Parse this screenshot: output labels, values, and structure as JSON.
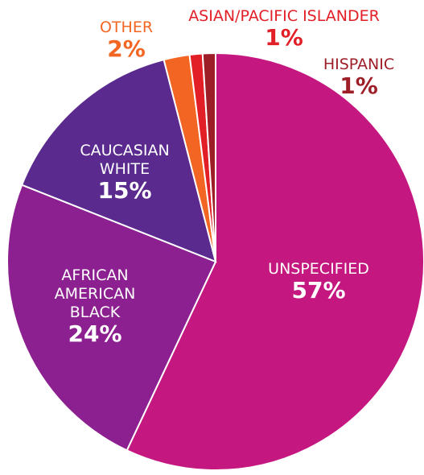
{
  "chart_data": {
    "type": "pie",
    "title": "",
    "start_angle_deg": 0,
    "direction": "clockwise",
    "slices": [
      {
        "label_lines": [
          "UNSPECIFIED"
        ],
        "value": 57,
        "percent_text": "57%",
        "color": "#c4177f",
        "label_color": "#ffffff"
      },
      {
        "label_lines": [
          "AFRICAN",
          "AMERICAN",
          "BLACK"
        ],
        "value": 24,
        "percent_text": "24%",
        "color": "#8c2090",
        "label_color": "#ffffff"
      },
      {
        "label_lines": [
          "CAUCASIAN",
          "WHITE"
        ],
        "value": 15,
        "percent_text": "15%",
        "color": "#5a2a8e",
        "label_color": "#ffffff"
      },
      {
        "label_lines": [
          "OTHER"
        ],
        "value": 2,
        "percent_text": "2%",
        "color": "#f26522",
        "label_color": "#f26522"
      },
      {
        "label_lines": [
          "ASIAN/PACIFIC ISLANDER"
        ],
        "value": 1,
        "percent_text": "1%",
        "color": "#e21f26",
        "label_color": "#e21f26"
      },
      {
        "label_lines": [
          "HISPANIC"
        ],
        "value": 1,
        "percent_text": "1%",
        "color": "#9e1e28",
        "label_color": "#9e1e28"
      }
    ]
  }
}
